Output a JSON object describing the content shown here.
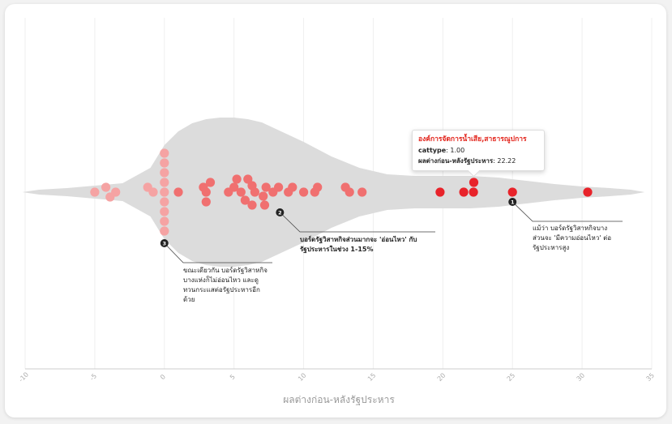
{
  "chart_data": {
    "type": "beeswarm-violin",
    "xlabel": "ผลต่างก่อน-หลังรัฐประหาร",
    "xlim": [
      -10,
      35
    ],
    "xticks": [
      -10,
      -5,
      0,
      5,
      10,
      15,
      20,
      25,
      30,
      35
    ],
    "points": [
      {
        "x": -5.0,
        "y": 0,
        "cat": 0
      },
      {
        "x": -4.2,
        "y": 0.6,
        "cat": 0
      },
      {
        "x": -3.9,
        "y": -0.6,
        "cat": 0
      },
      {
        "x": -3.5,
        "y": 0,
        "cat": 0
      },
      {
        "x": -1.2,
        "y": 0.6,
        "cat": 0
      },
      {
        "x": -0.8,
        "y": 0,
        "cat": 0
      },
      {
        "x": 0.0,
        "y": 0,
        "cat": 0
      },
      {
        "x": 0.0,
        "y": 1.2,
        "cat": 0
      },
      {
        "x": 0.0,
        "y": 2.4,
        "cat": 0
      },
      {
        "x": 0.0,
        "y": 3.6,
        "cat": 0
      },
      {
        "x": 0.0,
        "y": 4.8,
        "cat": 0
      },
      {
        "x": 0.0,
        "y": -1.2,
        "cat": 0
      },
      {
        "x": 0.0,
        "y": -2.4,
        "cat": 0
      },
      {
        "x": 0.0,
        "y": -3.6,
        "cat": 0
      },
      {
        "x": 0.0,
        "y": -4.8,
        "cat": 0
      },
      {
        "x": 1.0,
        "y": 0,
        "cat": 1
      },
      {
        "x": 2.8,
        "y": 0.6,
        "cat": 1
      },
      {
        "x": 3.3,
        "y": 1.2,
        "cat": 1
      },
      {
        "x": 3.0,
        "y": 0,
        "cat": 1
      },
      {
        "x": 3.0,
        "y": -1.2,
        "cat": 1
      },
      {
        "x": 4.6,
        "y": 0,
        "cat": 1
      },
      {
        "x": 5.0,
        "y": 0.6,
        "cat": 1
      },
      {
        "x": 5.2,
        "y": 1.6,
        "cat": 1
      },
      {
        "x": 5.5,
        "y": 0,
        "cat": 1
      },
      {
        "x": 5.8,
        "y": -1.0,
        "cat": 1
      },
      {
        "x": 6.0,
        "y": 1.6,
        "cat": 1
      },
      {
        "x": 6.3,
        "y": 0.8,
        "cat": 1
      },
      {
        "x": 6.5,
        "y": 0,
        "cat": 1
      },
      {
        "x": 6.3,
        "y": -1.6,
        "cat": 1
      },
      {
        "x": 7.1,
        "y": -0.5,
        "cat": 1
      },
      {
        "x": 7.2,
        "y": -1.6,
        "cat": 1
      },
      {
        "x": 7.3,
        "y": 0.6,
        "cat": 1
      },
      {
        "x": 7.8,
        "y": 0,
        "cat": 1
      },
      {
        "x": 8.2,
        "y": 0.6,
        "cat": 1
      },
      {
        "x": 8.9,
        "y": 0,
        "cat": 1
      },
      {
        "x": 9.2,
        "y": 0.6,
        "cat": 1
      },
      {
        "x": 10.0,
        "y": 0,
        "cat": 1
      },
      {
        "x": 10.8,
        "y": 0,
        "cat": 1
      },
      {
        "x": 11.0,
        "y": 0.6,
        "cat": 1
      },
      {
        "x": 13.0,
        "y": 0.6,
        "cat": 1
      },
      {
        "x": 13.3,
        "y": 0,
        "cat": 1
      },
      {
        "x": 14.2,
        "y": 0,
        "cat": 1
      },
      {
        "x": 19.8,
        "y": 0,
        "cat": 2
      },
      {
        "x": 21.5,
        "y": 0,
        "cat": 2
      },
      {
        "x": 22.2,
        "y": 0,
        "cat": 2
      },
      {
        "x": 22.22,
        "y": 1.2,
        "cat": 2
      },
      {
        "x": 25.0,
        "y": 0,
        "cat": 2
      },
      {
        "x": 30.4,
        "y": 0,
        "cat": 2
      }
    ],
    "category_colors": [
      "#f5a3a3",
      "#f07070",
      "#e8232a"
    ],
    "violin_color": "#dcdcdc",
    "annotations": [
      {
        "marker": "3",
        "text_lines": [
          "ขณะเดียวกัน บอร์ดรัฐวิสาหกิจ",
          "บางแห่งก็ไม่อ่อนไหว และดู",
          "ทวนกระแสต่อรัฐประหารอีก",
          "ด้วย"
        ]
      },
      {
        "marker": "2",
        "text_lines": [
          "บอร์ดรัฐวิสาหกิจส่วนมากจะ 'อ่อนไหว' กับ",
          "รัฐประหารในช่วง 1-15%"
        ]
      },
      {
        "marker": "1",
        "text_lines": [
          "แม้ว่า บอร์ดรัฐวิสาหกิจบาง",
          "ส่วนจะ 'มีความอ่อนไหว' ต่อ",
          "รัฐประหารสูง"
        ]
      }
    ],
    "tooltip": {
      "title": "องค์การจัดการน้ำเสีย,สาธารณูปการ",
      "cattype_label": "cattype",
      "cattype_value": "1.00",
      "diff_label": "ผลต่างก่อน-หลังรัฐประหาร",
      "diff_value": "22.22"
    }
  }
}
